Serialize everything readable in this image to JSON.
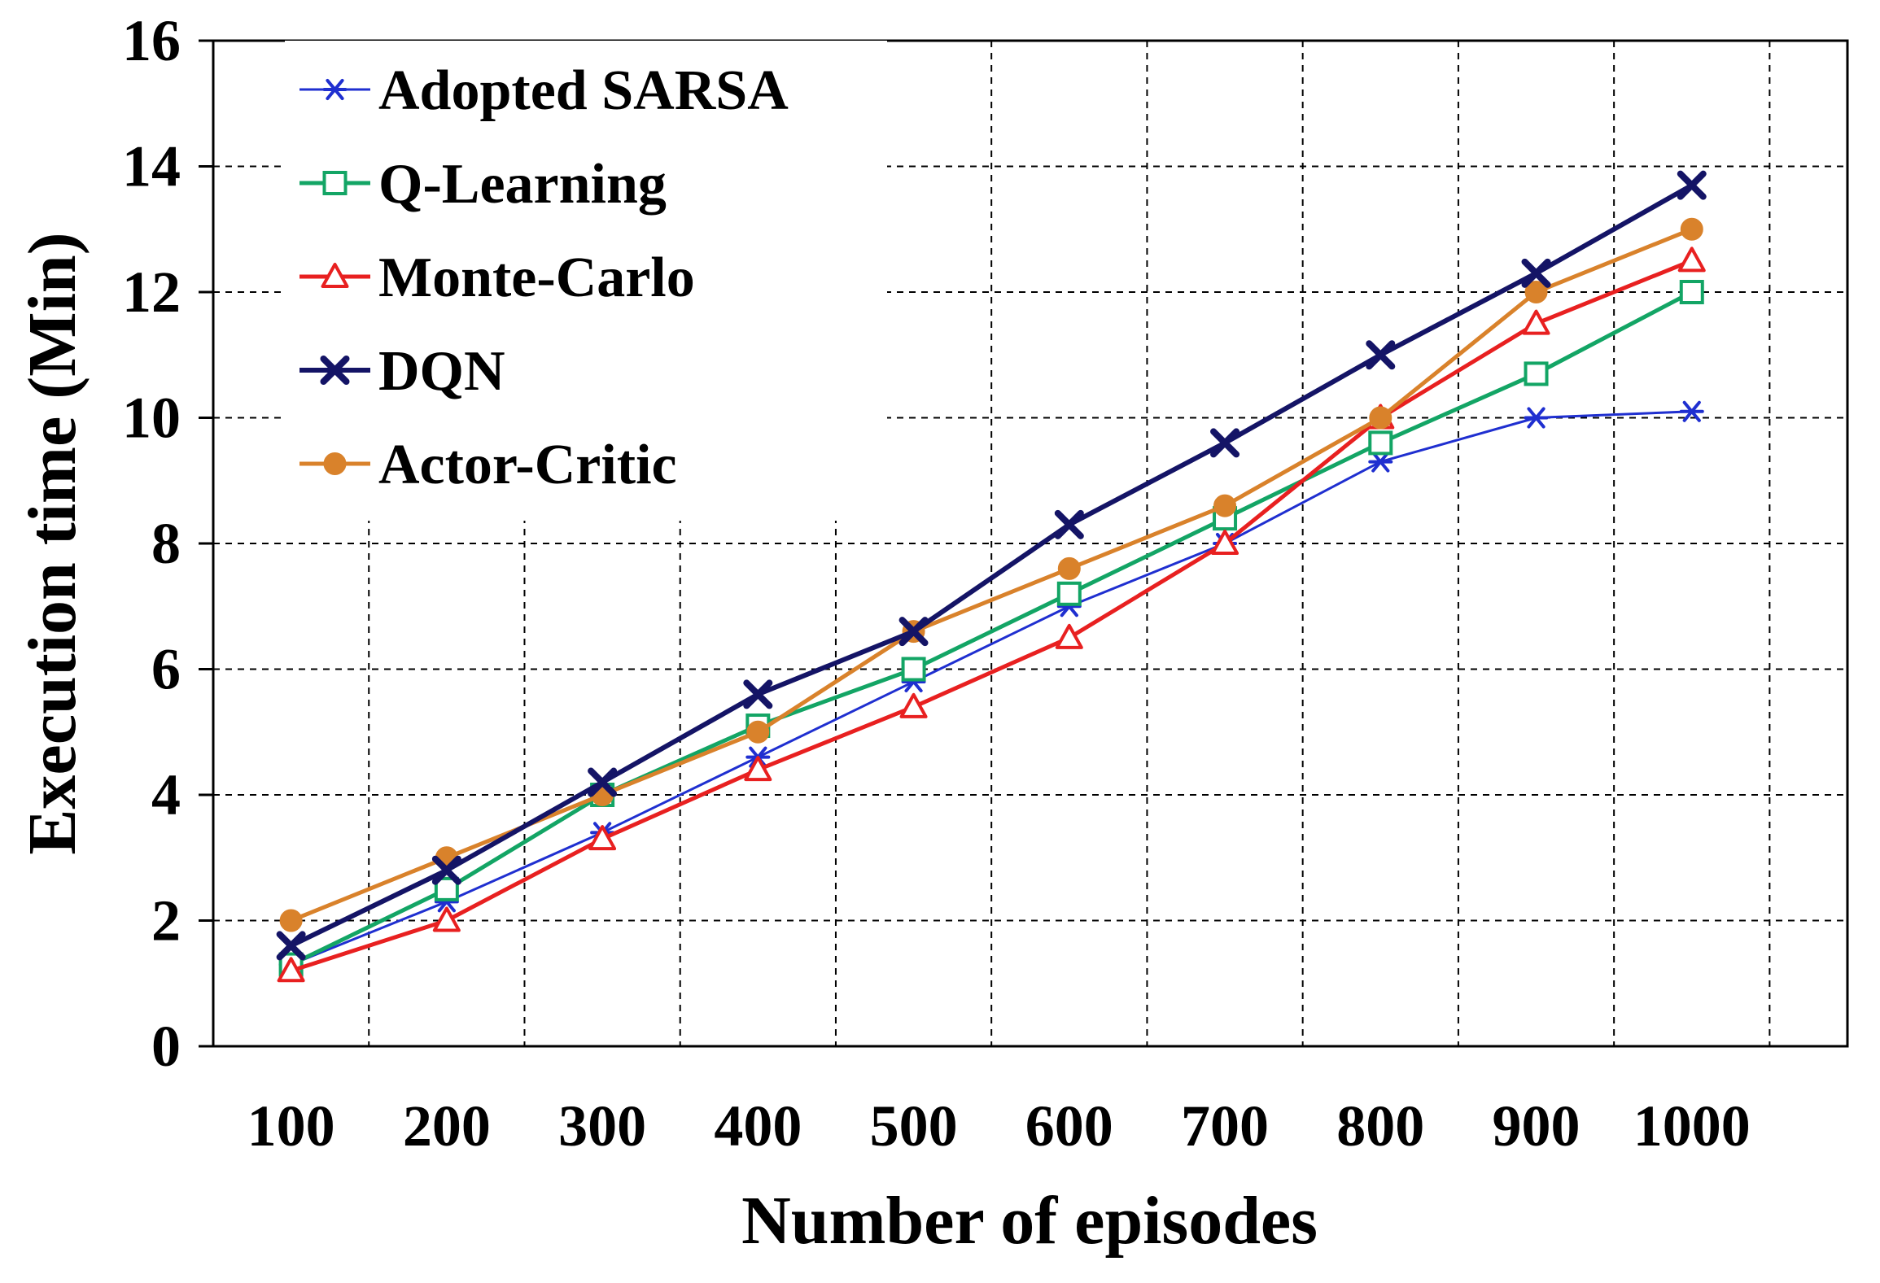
{
  "chart_data": {
    "type": "line",
    "title": "",
    "xlabel": "Number of episodes",
    "ylabel": "Execution time (Min)",
    "categories": [
      "100",
      "200",
      "300",
      "400",
      "500",
      "600",
      "700",
      "800",
      "900",
      "1000"
    ],
    "ylim": [
      0,
      16
    ],
    "yticks": [
      "0",
      "2",
      "4",
      "6",
      "8",
      "10",
      "12",
      "14",
      "16"
    ],
    "grid": true,
    "legend_position": "top-left",
    "series": [
      {
        "name": "Adopted SARSA",
        "color": "#1f2fd0",
        "marker": "asterisk",
        "width": 3,
        "values": [
          1.3,
          2.3,
          3.4,
          4.6,
          5.8,
          7.0,
          8.0,
          9.3,
          10.0,
          10.1
        ]
      },
      {
        "name": "Q-Learning",
        "color": "#13a565",
        "marker": "square-open",
        "width": 5,
        "values": [
          1.3,
          2.5,
          4.0,
          5.1,
          6.0,
          7.2,
          8.4,
          9.6,
          10.7,
          12.0
        ]
      },
      {
        "name": "Monte-Carlo",
        "color": "#e82020",
        "marker": "triangle-open",
        "width": 5,
        "values": [
          1.2,
          2.0,
          3.3,
          4.4,
          5.4,
          6.5,
          8.0,
          10.0,
          11.5,
          12.5
        ]
      },
      {
        "name": "DQN",
        "color": "#141466",
        "marker": "x-bold",
        "width": 6,
        "values": [
          1.6,
          2.8,
          4.2,
          5.6,
          6.6,
          8.3,
          9.6,
          11.0,
          12.3,
          13.7
        ]
      },
      {
        "name": "Actor-Critic",
        "color": "#d9822b",
        "marker": "circle-filled",
        "width": 5,
        "values": [
          2.0,
          3.0,
          4.0,
          5.0,
          6.6,
          7.6,
          8.6,
          10.0,
          12.0,
          13.0
        ]
      }
    ]
  }
}
